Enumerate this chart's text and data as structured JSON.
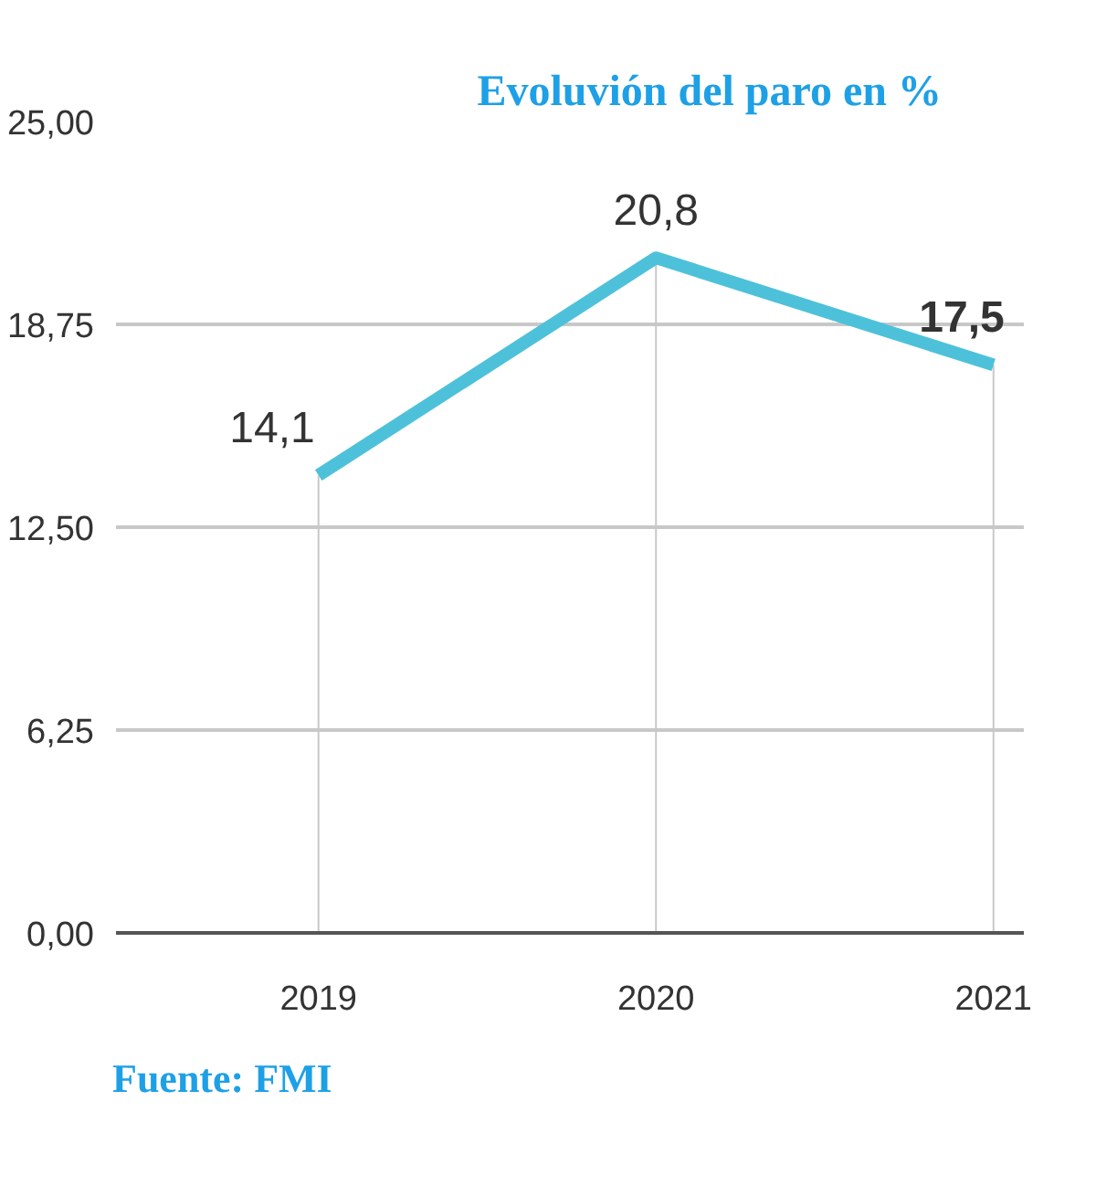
{
  "chart_data": {
    "type": "line",
    "title": "Evoluvión del paro en %",
    "categories": [
      "2019",
      "2020",
      "2021"
    ],
    "series": [
      {
        "color": "#4ec1da",
        "values": [
          14.1,
          20.8,
          17.5
        ],
        "value_labels": [
          "14,1",
          "20,8",
          "17,5"
        ]
      }
    ],
    "ylim": [
      0,
      25
    ],
    "yticks": [
      {
        "value": 0,
        "label": "0,00"
      },
      {
        "value": 6.25,
        "label": "6,25"
      },
      {
        "value": 12.5,
        "label": "12,50"
      },
      {
        "value": 18.75,
        "label": "18,75"
      },
      {
        "value": 25,
        "label": "25,00"
      }
    ],
    "grid": true,
    "marker": "none",
    "line_style": "solid",
    "annotations": [
      "Fuente: FMI"
    ]
  }
}
